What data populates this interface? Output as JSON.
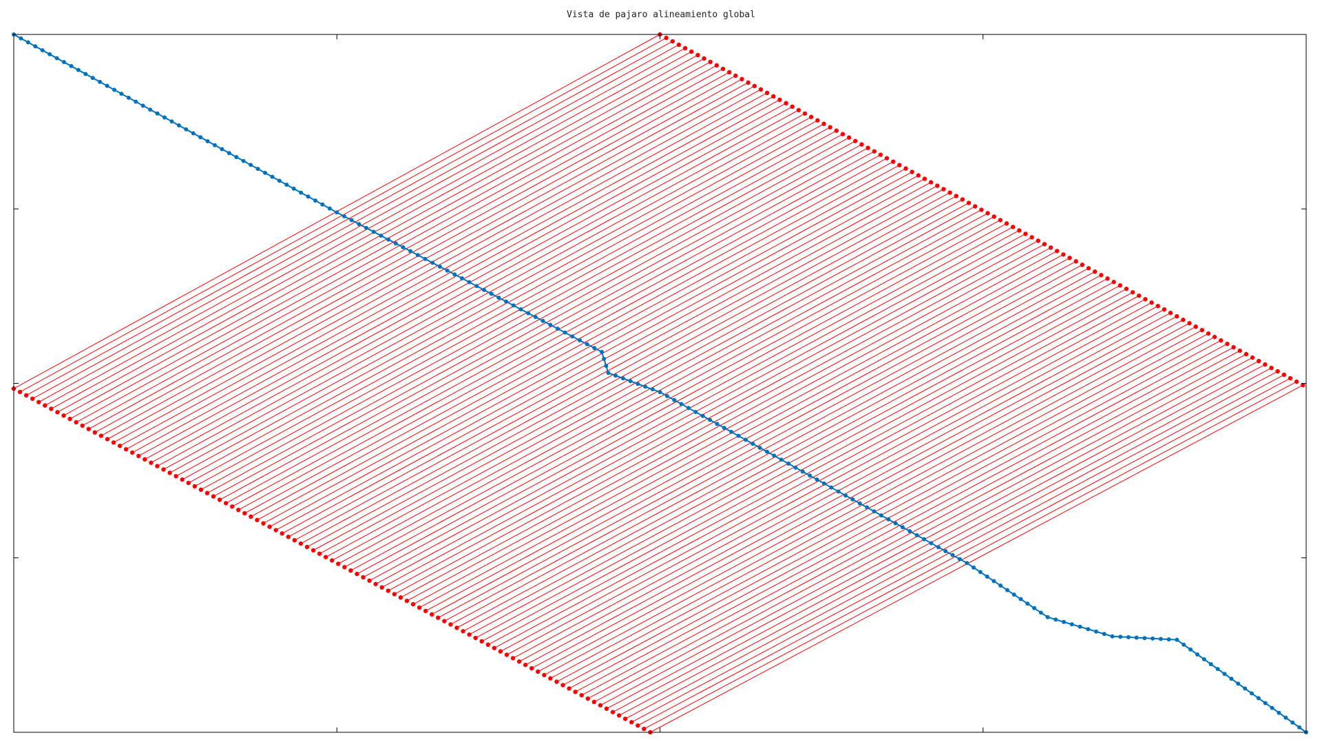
{
  "title": "Vista de pajaro alineamiento global",
  "chart_data": {
    "type": "line",
    "title": "Vista de pajaro alineamiento global",
    "xlabel": "",
    "ylabel": "",
    "xlim": [
      0,
      4
    ],
    "ylim": [
      0,
      4
    ],
    "axis_tick_labels": "none",
    "grid": false,
    "x_ticks": [
      0,
      1,
      2,
      3,
      4
    ],
    "y_ticks": [
      0,
      1,
      2,
      3,
      4
    ],
    "colors": {
      "alignment_path": "#0072bd",
      "grid_lines": "#ff0000"
    },
    "alignment_path": {
      "x": [
        0.0,
        1.0,
        1.82,
        1.84,
        2.0,
        2.95,
        3.2,
        3.4,
        3.6,
        4.0
      ],
      "y": [
        4.0,
        2.98,
        2.18,
        2.06,
        1.95,
        0.97,
        0.66,
        0.55,
        0.53,
        0.0
      ]
    },
    "grid_families": [
      {
        "name": "",
        "count": 103,
        "start_point_from": [
          0.0,
          1.97
        ],
        "start_point_to": [
          1.97,
          0.0
        ],
        "end_point_from": [
          2.0,
          4.0
        ],
        "end_point_to": [
          3.99,
          1.99
        ]
      }
    ]
  }
}
